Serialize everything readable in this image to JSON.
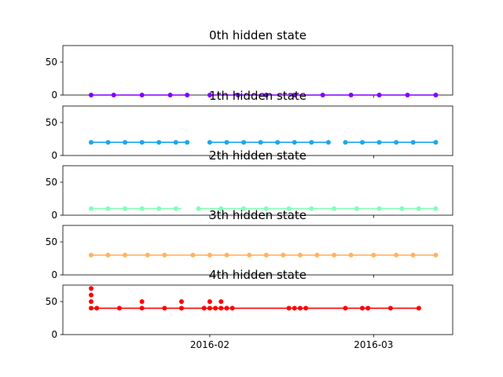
{
  "chart_data": [
    {
      "type": "line",
      "title": "0th hidden state",
      "color": "#8000ff",
      "ylim": [
        0,
        75
      ],
      "yticks": [
        0,
        50
      ],
      "show_x_labels": false,
      "segments": [
        [
          "2016-01-11",
          "2016-01-28",
          0
        ],
        [
          "2016-02-01",
          "2016-03-12",
          0
        ]
      ],
      "points": [
        [
          "2016-01-11",
          0
        ],
        [
          "2016-01-15",
          0
        ],
        [
          "2016-01-20",
          0
        ],
        [
          "2016-01-25",
          0
        ],
        [
          "2016-01-28",
          0
        ],
        [
          "2016-02-01",
          0
        ],
        [
          "2016-02-06",
          0
        ],
        [
          "2016-02-11",
          0
        ],
        [
          "2016-02-16",
          0
        ],
        [
          "2016-02-21",
          0
        ],
        [
          "2016-02-26",
          0
        ],
        [
          "2016-03-02",
          0
        ],
        [
          "2016-03-07",
          0
        ],
        [
          "2016-03-12",
          0
        ]
      ]
    },
    {
      "type": "line",
      "title": "1th hidden state",
      "color": "#1aa7ec",
      "ylim": [
        0,
        75
      ],
      "yticks": [
        0,
        50
      ],
      "show_x_labels": false,
      "segments": [
        [
          "2016-01-11",
          "2016-01-28",
          20
        ],
        [
          "2016-02-01",
          "2016-02-22",
          20
        ],
        [
          "2016-02-25",
          "2016-03-12",
          20
        ]
      ],
      "points": [
        [
          "2016-01-11",
          20
        ],
        [
          "2016-01-14",
          20
        ],
        [
          "2016-01-17",
          20
        ],
        [
          "2016-01-20",
          20
        ],
        [
          "2016-01-23",
          20
        ],
        [
          "2016-01-26",
          20
        ],
        [
          "2016-01-28",
          20
        ],
        [
          "2016-02-01",
          20
        ],
        [
          "2016-02-04",
          20
        ],
        [
          "2016-02-07",
          20
        ],
        [
          "2016-02-10",
          20
        ],
        [
          "2016-02-13",
          20
        ],
        [
          "2016-02-16",
          20
        ],
        [
          "2016-02-19",
          20
        ],
        [
          "2016-02-22",
          20
        ],
        [
          "2016-02-25",
          20
        ],
        [
          "2016-02-28",
          20
        ],
        [
          "2016-03-02",
          20
        ],
        [
          "2016-03-05",
          20
        ],
        [
          "2016-03-08",
          20
        ],
        [
          "2016-03-12",
          20
        ]
      ]
    },
    {
      "type": "line",
      "title": "2th hidden state",
      "color": "#80ffb4",
      "ylim": [
        0,
        75
      ],
      "yticks": [
        0,
        50
      ],
      "show_x_labels": false,
      "segments": [
        [
          "2016-01-11",
          "2016-01-27",
          10
        ],
        [
          "2016-01-30",
          "2016-03-12",
          10
        ]
      ],
      "points": [
        [
          "2016-01-11",
          10
        ],
        [
          "2016-01-14",
          10
        ],
        [
          "2016-01-17",
          10
        ],
        [
          "2016-01-20",
          10
        ],
        [
          "2016-01-23",
          10
        ],
        [
          "2016-01-26",
          10
        ],
        [
          "2016-01-30",
          10
        ],
        [
          "2016-02-03",
          10
        ],
        [
          "2016-02-07",
          10
        ],
        [
          "2016-02-11",
          10
        ],
        [
          "2016-02-15",
          10
        ],
        [
          "2016-02-19",
          10
        ],
        [
          "2016-02-23",
          10
        ],
        [
          "2016-02-27",
          10
        ],
        [
          "2016-03-02",
          10
        ],
        [
          "2016-03-06",
          10
        ],
        [
          "2016-03-09",
          10
        ],
        [
          "2016-03-12",
          10
        ]
      ]
    },
    {
      "type": "line",
      "title": "3th hidden state",
      "color": "#ffb360",
      "ylim": [
        0,
        75
      ],
      "yticks": [
        0,
        50
      ],
      "show_x_labels": false,
      "segments": [
        [
          "2016-01-11",
          "2016-03-12",
          30
        ]
      ],
      "points": [
        [
          "2016-01-11",
          30
        ],
        [
          "2016-01-14",
          30
        ],
        [
          "2016-01-17",
          30
        ],
        [
          "2016-01-21",
          30
        ],
        [
          "2016-01-24",
          30
        ],
        [
          "2016-01-29",
          30
        ],
        [
          "2016-02-01",
          30
        ],
        [
          "2016-02-04",
          30
        ],
        [
          "2016-02-08",
          30
        ],
        [
          "2016-02-11",
          30
        ],
        [
          "2016-02-14",
          30
        ],
        [
          "2016-02-17",
          30
        ],
        [
          "2016-02-20",
          30
        ],
        [
          "2016-02-23",
          30
        ],
        [
          "2016-02-26",
          30
        ],
        [
          "2016-03-01",
          30
        ],
        [
          "2016-03-05",
          30
        ],
        [
          "2016-03-08",
          30
        ],
        [
          "2016-03-12",
          30
        ]
      ]
    },
    {
      "type": "line",
      "title": "4th hidden state",
      "color": "#ff0000",
      "ylim": [
        0,
        75
      ],
      "yticks": [
        0,
        50
      ],
      "show_x_labels": true,
      "xticks": [
        {
          "date": "2016-02-01",
          "label": "2016-02"
        },
        {
          "date": "2016-03-01",
          "label": "2016-03"
        }
      ],
      "segments": [
        [
          "2016-01-11",
          "2016-03-09",
          40
        ]
      ],
      "points": [
        [
          "2016-01-11",
          40
        ],
        [
          "2016-01-11",
          70
        ],
        [
          "2016-01-11",
          60
        ],
        [
          "2016-01-11",
          50
        ],
        [
          "2016-01-12",
          40
        ],
        [
          "2016-01-16",
          40
        ],
        [
          "2016-01-20",
          40
        ],
        [
          "2016-01-20",
          50
        ],
        [
          "2016-01-24",
          40
        ],
        [
          "2016-01-27",
          40
        ],
        [
          "2016-01-27",
          50
        ],
        [
          "2016-01-31",
          40
        ],
        [
          "2016-02-01",
          40
        ],
        [
          "2016-02-01",
          50
        ],
        [
          "2016-02-02",
          40
        ],
        [
          "2016-02-03",
          40
        ],
        [
          "2016-02-03",
          50
        ],
        [
          "2016-02-04",
          40
        ],
        [
          "2016-02-05",
          40
        ],
        [
          "2016-02-15",
          40
        ],
        [
          "2016-02-16",
          40
        ],
        [
          "2016-02-17",
          40
        ],
        [
          "2016-02-18",
          40
        ],
        [
          "2016-02-25",
          40
        ],
        [
          "2016-02-28",
          40
        ],
        [
          "2016-02-29",
          40
        ],
        [
          "2016-03-04",
          40
        ],
        [
          "2016-03-09",
          40
        ]
      ]
    }
  ]
}
